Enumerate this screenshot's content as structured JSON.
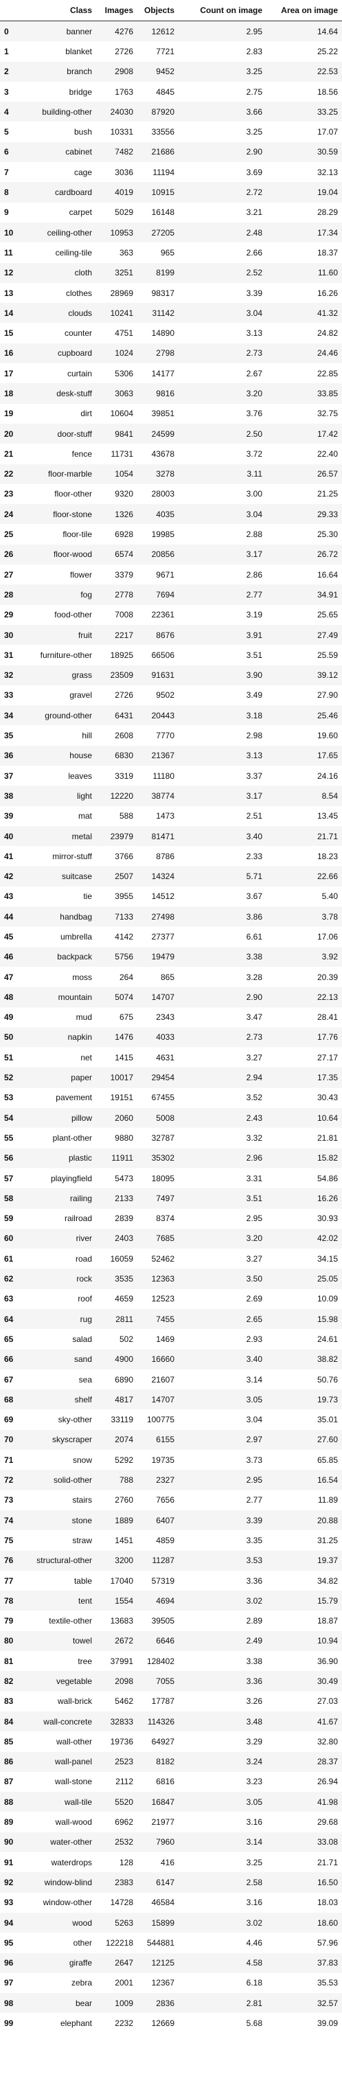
{
  "headers": [
    "",
    "Class",
    "Images",
    "Objects",
    "Count on image",
    "Area on image"
  ],
  "rows": [
    [
      "0",
      "banner",
      "4276",
      "12612",
      "2.95",
      "14.64"
    ],
    [
      "1",
      "blanket",
      "2726",
      "7721",
      "2.83",
      "25.22"
    ],
    [
      "2",
      "branch",
      "2908",
      "9452",
      "3.25",
      "22.53"
    ],
    [
      "3",
      "bridge",
      "1763",
      "4845",
      "2.75",
      "18.56"
    ],
    [
      "4",
      "building-other",
      "24030",
      "87920",
      "3.66",
      "33.25"
    ],
    [
      "5",
      "bush",
      "10331",
      "33556",
      "3.25",
      "17.07"
    ],
    [
      "6",
      "cabinet",
      "7482",
      "21686",
      "2.90",
      "30.59"
    ],
    [
      "7",
      "cage",
      "3036",
      "11194",
      "3.69",
      "32.13"
    ],
    [
      "8",
      "cardboard",
      "4019",
      "10915",
      "2.72",
      "19.04"
    ],
    [
      "9",
      "carpet",
      "5029",
      "16148",
      "3.21",
      "28.29"
    ],
    [
      "10",
      "ceiling-other",
      "10953",
      "27205",
      "2.48",
      "17.34"
    ],
    [
      "11",
      "ceiling-tile",
      "363",
      "965",
      "2.66",
      "18.37"
    ],
    [
      "12",
      "cloth",
      "3251",
      "8199",
      "2.52",
      "11.60"
    ],
    [
      "13",
      "clothes",
      "28969",
      "98317",
      "3.39",
      "16.26"
    ],
    [
      "14",
      "clouds",
      "10241",
      "31142",
      "3.04",
      "41.32"
    ],
    [
      "15",
      "counter",
      "4751",
      "14890",
      "3.13",
      "24.82"
    ],
    [
      "16",
      "cupboard",
      "1024",
      "2798",
      "2.73",
      "24.46"
    ],
    [
      "17",
      "curtain",
      "5306",
      "14177",
      "2.67",
      "22.85"
    ],
    [
      "18",
      "desk-stuff",
      "3063",
      "9816",
      "3.20",
      "33.85"
    ],
    [
      "19",
      "dirt",
      "10604",
      "39851",
      "3.76",
      "32.75"
    ],
    [
      "20",
      "door-stuff",
      "9841",
      "24599",
      "2.50",
      "17.42"
    ],
    [
      "21",
      "fence",
      "11731",
      "43678",
      "3.72",
      "22.40"
    ],
    [
      "22",
      "floor-marble",
      "1054",
      "3278",
      "3.11",
      "26.57"
    ],
    [
      "23",
      "floor-other",
      "9320",
      "28003",
      "3.00",
      "21.25"
    ],
    [
      "24",
      "floor-stone",
      "1326",
      "4035",
      "3.04",
      "29.33"
    ],
    [
      "25",
      "floor-tile",
      "6928",
      "19985",
      "2.88",
      "25.30"
    ],
    [
      "26",
      "floor-wood",
      "6574",
      "20856",
      "3.17",
      "26.72"
    ],
    [
      "27",
      "flower",
      "3379",
      "9671",
      "2.86",
      "16.64"
    ],
    [
      "28",
      "fog",
      "2778",
      "7694",
      "2.77",
      "34.91"
    ],
    [
      "29",
      "food-other",
      "7008",
      "22361",
      "3.19",
      "25.65"
    ],
    [
      "30",
      "fruit",
      "2217",
      "8676",
      "3.91",
      "27.49"
    ],
    [
      "31",
      "furniture-other",
      "18925",
      "66506",
      "3.51",
      "25.59"
    ],
    [
      "32",
      "grass",
      "23509",
      "91631",
      "3.90",
      "39.12"
    ],
    [
      "33",
      "gravel",
      "2726",
      "9502",
      "3.49",
      "27.90"
    ],
    [
      "34",
      "ground-other",
      "6431",
      "20443",
      "3.18",
      "25.46"
    ],
    [
      "35",
      "hill",
      "2608",
      "7770",
      "2.98",
      "19.60"
    ],
    [
      "36",
      "house",
      "6830",
      "21367",
      "3.13",
      "17.65"
    ],
    [
      "37",
      "leaves",
      "3319",
      "11180",
      "3.37",
      "24.16"
    ],
    [
      "38",
      "light",
      "12220",
      "38774",
      "3.17",
      "8.54"
    ],
    [
      "39",
      "mat",
      "588",
      "1473",
      "2.51",
      "13.45"
    ],
    [
      "40",
      "metal",
      "23979",
      "81471",
      "3.40",
      "21.71"
    ],
    [
      "41",
      "mirror-stuff",
      "3766",
      "8786",
      "2.33",
      "18.23"
    ],
    [
      "42",
      "suitcase",
      "2507",
      "14324",
      "5.71",
      "22.66"
    ],
    [
      "43",
      "tie",
      "3955",
      "14512",
      "3.67",
      "5.40"
    ],
    [
      "44",
      "handbag",
      "7133",
      "27498",
      "3.86",
      "3.78"
    ],
    [
      "45",
      "umbrella",
      "4142",
      "27377",
      "6.61",
      "17.06"
    ],
    [
      "46",
      "backpack",
      "5756",
      "19479",
      "3.38",
      "3.92"
    ],
    [
      "47",
      "moss",
      "264",
      "865",
      "3.28",
      "20.39"
    ],
    [
      "48",
      "mountain",
      "5074",
      "14707",
      "2.90",
      "22.13"
    ],
    [
      "49",
      "mud",
      "675",
      "2343",
      "3.47",
      "28.41"
    ],
    [
      "50",
      "napkin",
      "1476",
      "4033",
      "2.73",
      "17.76"
    ],
    [
      "51",
      "net",
      "1415",
      "4631",
      "3.27",
      "27.17"
    ],
    [
      "52",
      "paper",
      "10017",
      "29454",
      "2.94",
      "17.35"
    ],
    [
      "53",
      "pavement",
      "19151",
      "67455",
      "3.52",
      "30.43"
    ],
    [
      "54",
      "pillow",
      "2060",
      "5008",
      "2.43",
      "10.64"
    ],
    [
      "55",
      "plant-other",
      "9880",
      "32787",
      "3.32",
      "21.81"
    ],
    [
      "56",
      "plastic",
      "11911",
      "35302",
      "2.96",
      "15.82"
    ],
    [
      "57",
      "playingfield",
      "5473",
      "18095",
      "3.31",
      "54.86"
    ],
    [
      "58",
      "railing",
      "2133",
      "7497",
      "3.51",
      "16.26"
    ],
    [
      "59",
      "railroad",
      "2839",
      "8374",
      "2.95",
      "30.93"
    ],
    [
      "60",
      "river",
      "2403",
      "7685",
      "3.20",
      "42.02"
    ],
    [
      "61",
      "road",
      "16059",
      "52462",
      "3.27",
      "34.15"
    ],
    [
      "62",
      "rock",
      "3535",
      "12363",
      "3.50",
      "25.05"
    ],
    [
      "63",
      "roof",
      "4659",
      "12523",
      "2.69",
      "10.09"
    ],
    [
      "64",
      "rug",
      "2811",
      "7455",
      "2.65",
      "15.98"
    ],
    [
      "65",
      "salad",
      "502",
      "1469",
      "2.93",
      "24.61"
    ],
    [
      "66",
      "sand",
      "4900",
      "16660",
      "3.40",
      "38.82"
    ],
    [
      "67",
      "sea",
      "6890",
      "21607",
      "3.14",
      "50.76"
    ],
    [
      "68",
      "shelf",
      "4817",
      "14707",
      "3.05",
      "19.73"
    ],
    [
      "69",
      "sky-other",
      "33119",
      "100775",
      "3.04",
      "35.01"
    ],
    [
      "70",
      "skyscraper",
      "2074",
      "6155",
      "2.97",
      "27.60"
    ],
    [
      "71",
      "snow",
      "5292",
      "19735",
      "3.73",
      "65.85"
    ],
    [
      "72",
      "solid-other",
      "788",
      "2327",
      "2.95",
      "16.54"
    ],
    [
      "73",
      "stairs",
      "2760",
      "7656",
      "2.77",
      "11.89"
    ],
    [
      "74",
      "stone",
      "1889",
      "6407",
      "3.39",
      "20.88"
    ],
    [
      "75",
      "straw",
      "1451",
      "4859",
      "3.35",
      "31.25"
    ],
    [
      "76",
      "structural-other",
      "3200",
      "11287",
      "3.53",
      "19.37"
    ],
    [
      "77",
      "table",
      "17040",
      "57319",
      "3.36",
      "34.82"
    ],
    [
      "78",
      "tent",
      "1554",
      "4694",
      "3.02",
      "15.79"
    ],
    [
      "79",
      "textile-other",
      "13683",
      "39505",
      "2.89",
      "18.87"
    ],
    [
      "80",
      "towel",
      "2672",
      "6646",
      "2.49",
      "10.94"
    ],
    [
      "81",
      "tree",
      "37991",
      "128402",
      "3.38",
      "36.90"
    ],
    [
      "82",
      "vegetable",
      "2098",
      "7055",
      "3.36",
      "30.49"
    ],
    [
      "83",
      "wall-brick",
      "5462",
      "17787",
      "3.26",
      "27.03"
    ],
    [
      "84",
      "wall-concrete",
      "32833",
      "114326",
      "3.48",
      "41.67"
    ],
    [
      "85",
      "wall-other",
      "19736",
      "64927",
      "3.29",
      "32.80"
    ],
    [
      "86",
      "wall-panel",
      "2523",
      "8182",
      "3.24",
      "28.37"
    ],
    [
      "87",
      "wall-stone",
      "2112",
      "6816",
      "3.23",
      "26.94"
    ],
    [
      "88",
      "wall-tile",
      "5520",
      "16847",
      "3.05",
      "41.98"
    ],
    [
      "89",
      "wall-wood",
      "6962",
      "21977",
      "3.16",
      "29.68"
    ],
    [
      "90",
      "water-other",
      "2532",
      "7960",
      "3.14",
      "33.08"
    ],
    [
      "91",
      "waterdrops",
      "128",
      "416",
      "3.25",
      "21.71"
    ],
    [
      "92",
      "window-blind",
      "2383",
      "6147",
      "2.58",
      "16.50"
    ],
    [
      "93",
      "window-other",
      "14728",
      "46584",
      "3.16",
      "18.03"
    ],
    [
      "94",
      "wood",
      "5263",
      "15899",
      "3.02",
      "18.60"
    ],
    [
      "95",
      "other",
      "122218",
      "544881",
      "4.46",
      "57.96"
    ],
    [
      "96",
      "giraffe",
      "2647",
      "12125",
      "4.58",
      "37.83"
    ],
    [
      "97",
      "zebra",
      "2001",
      "12367",
      "6.18",
      "35.53"
    ],
    [
      "98",
      "bear",
      "1009",
      "2836",
      "2.81",
      "32.57"
    ],
    [
      "99",
      "elephant",
      "2232",
      "12669",
      "5.68",
      "39.09"
    ]
  ]
}
